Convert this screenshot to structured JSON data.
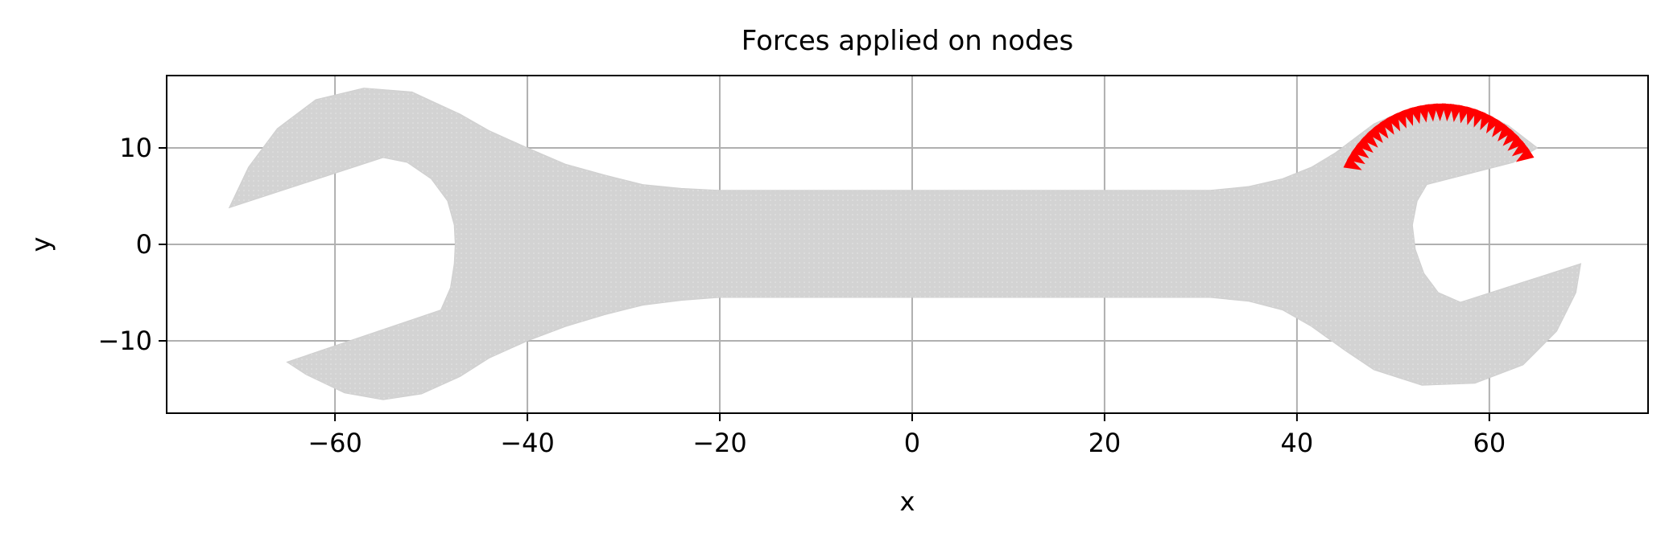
{
  "chart_data": {
    "type": "scatter",
    "title": "Forces applied on nodes",
    "xlabel": "x",
    "ylabel": "y",
    "xlim": [
      -77.5,
      76.5
    ],
    "ylim": [
      -17.5,
      17.5
    ],
    "xticks": [
      -60,
      -40,
      -20,
      0,
      20,
      40,
      60
    ],
    "yticks": [
      -10,
      0,
      10
    ],
    "xtick_labels": [
      "−60",
      "−40",
      "−20",
      "0",
      "20",
      "40",
      "60"
    ],
    "ytick_labels": [
      "−10",
      "0",
      "10"
    ],
    "grid": true,
    "legend": "none",
    "mesh_color": "#d3d3d3",
    "force_color": "#ff0000",
    "series": [
      {
        "kind": "mesh",
        "outline": [
          [
            -55,
            9
          ],
          [
            -71,
            3.8
          ],
          [
            -69,
            8
          ],
          [
            -66,
            12
          ],
          [
            -62,
            15
          ],
          [
            -57,
            16.2
          ],
          [
            -52,
            15.8
          ],
          [
            -47,
            13.5
          ],
          [
            -44,
            11.8
          ],
          [
            -40,
            10
          ],
          [
            -36,
            8.3
          ],
          [
            -32,
            7.2
          ],
          [
            -28,
            6.2
          ],
          [
            -24,
            5.8
          ],
          [
            -20,
            5.6
          ],
          [
            0,
            5.6
          ],
          [
            20,
            5.6
          ],
          [
            31,
            5.6
          ],
          [
            35,
            6
          ],
          [
            38.5,
            6.8
          ],
          [
            41.5,
            8
          ],
          [
            44,
            9.5
          ],
          [
            46,
            11
          ],
          [
            48,
            12.5
          ],
          [
            51,
            13.8
          ],
          [
            55,
            14.3
          ],
          [
            59,
            13.8
          ],
          [
            62,
            12.3
          ],
          [
            65,
            10
          ],
          [
            62.5,
            8.5
          ],
          [
            53.5,
            6.2
          ],
          [
            52.5,
            4.5
          ],
          [
            52,
            2
          ],
          [
            52.3,
            -0.5
          ],
          [
            53.2,
            -3
          ],
          [
            54.7,
            -5
          ],
          [
            57,
            -6
          ],
          [
            69.5,
            -2
          ],
          [
            69,
            -5
          ],
          [
            67,
            -9
          ],
          [
            63.5,
            -12.5
          ],
          [
            58.5,
            -14.4
          ],
          [
            53,
            -14.6
          ],
          [
            48,
            -13
          ],
          [
            45,
            -11
          ],
          [
            41.5,
            -8.5
          ],
          [
            38.5,
            -6.8
          ],
          [
            35,
            -5.9
          ],
          [
            31,
            -5.5
          ],
          [
            20,
            -5.5
          ],
          [
            0,
            -5.5
          ],
          [
            -20,
            -5.5
          ],
          [
            -24,
            -5.8
          ],
          [
            -28,
            -6.3
          ],
          [
            -32,
            -7.3
          ],
          [
            -36,
            -8.5
          ],
          [
            -40,
            -10
          ],
          [
            -44,
            -11.8
          ],
          [
            -47,
            -13.7
          ],
          [
            -51,
            -15.5
          ],
          [
            -55,
            -16.1
          ],
          [
            -59,
            -15.4
          ],
          [
            -63,
            -13.5
          ],
          [
            -65,
            -12.2
          ],
          [
            -49,
            -6.8
          ],
          [
            -48,
            -4.5
          ],
          [
            -47.6,
            -2
          ],
          [
            -47.5,
            0
          ],
          [
            -47.6,
            2
          ],
          [
            -48.3,
            4.5
          ],
          [
            -50,
            6.8
          ],
          [
            -52.5,
            8.5
          ],
          [
            -55,
            9
          ]
        ]
      },
      {
        "kind": "force_markers",
        "arc_center": [
          55,
          3.5
        ],
        "arc_radius": 10.8,
        "angle_start_deg": 153,
        "angle_end_deg": 33,
        "count": 28
      }
    ]
  }
}
